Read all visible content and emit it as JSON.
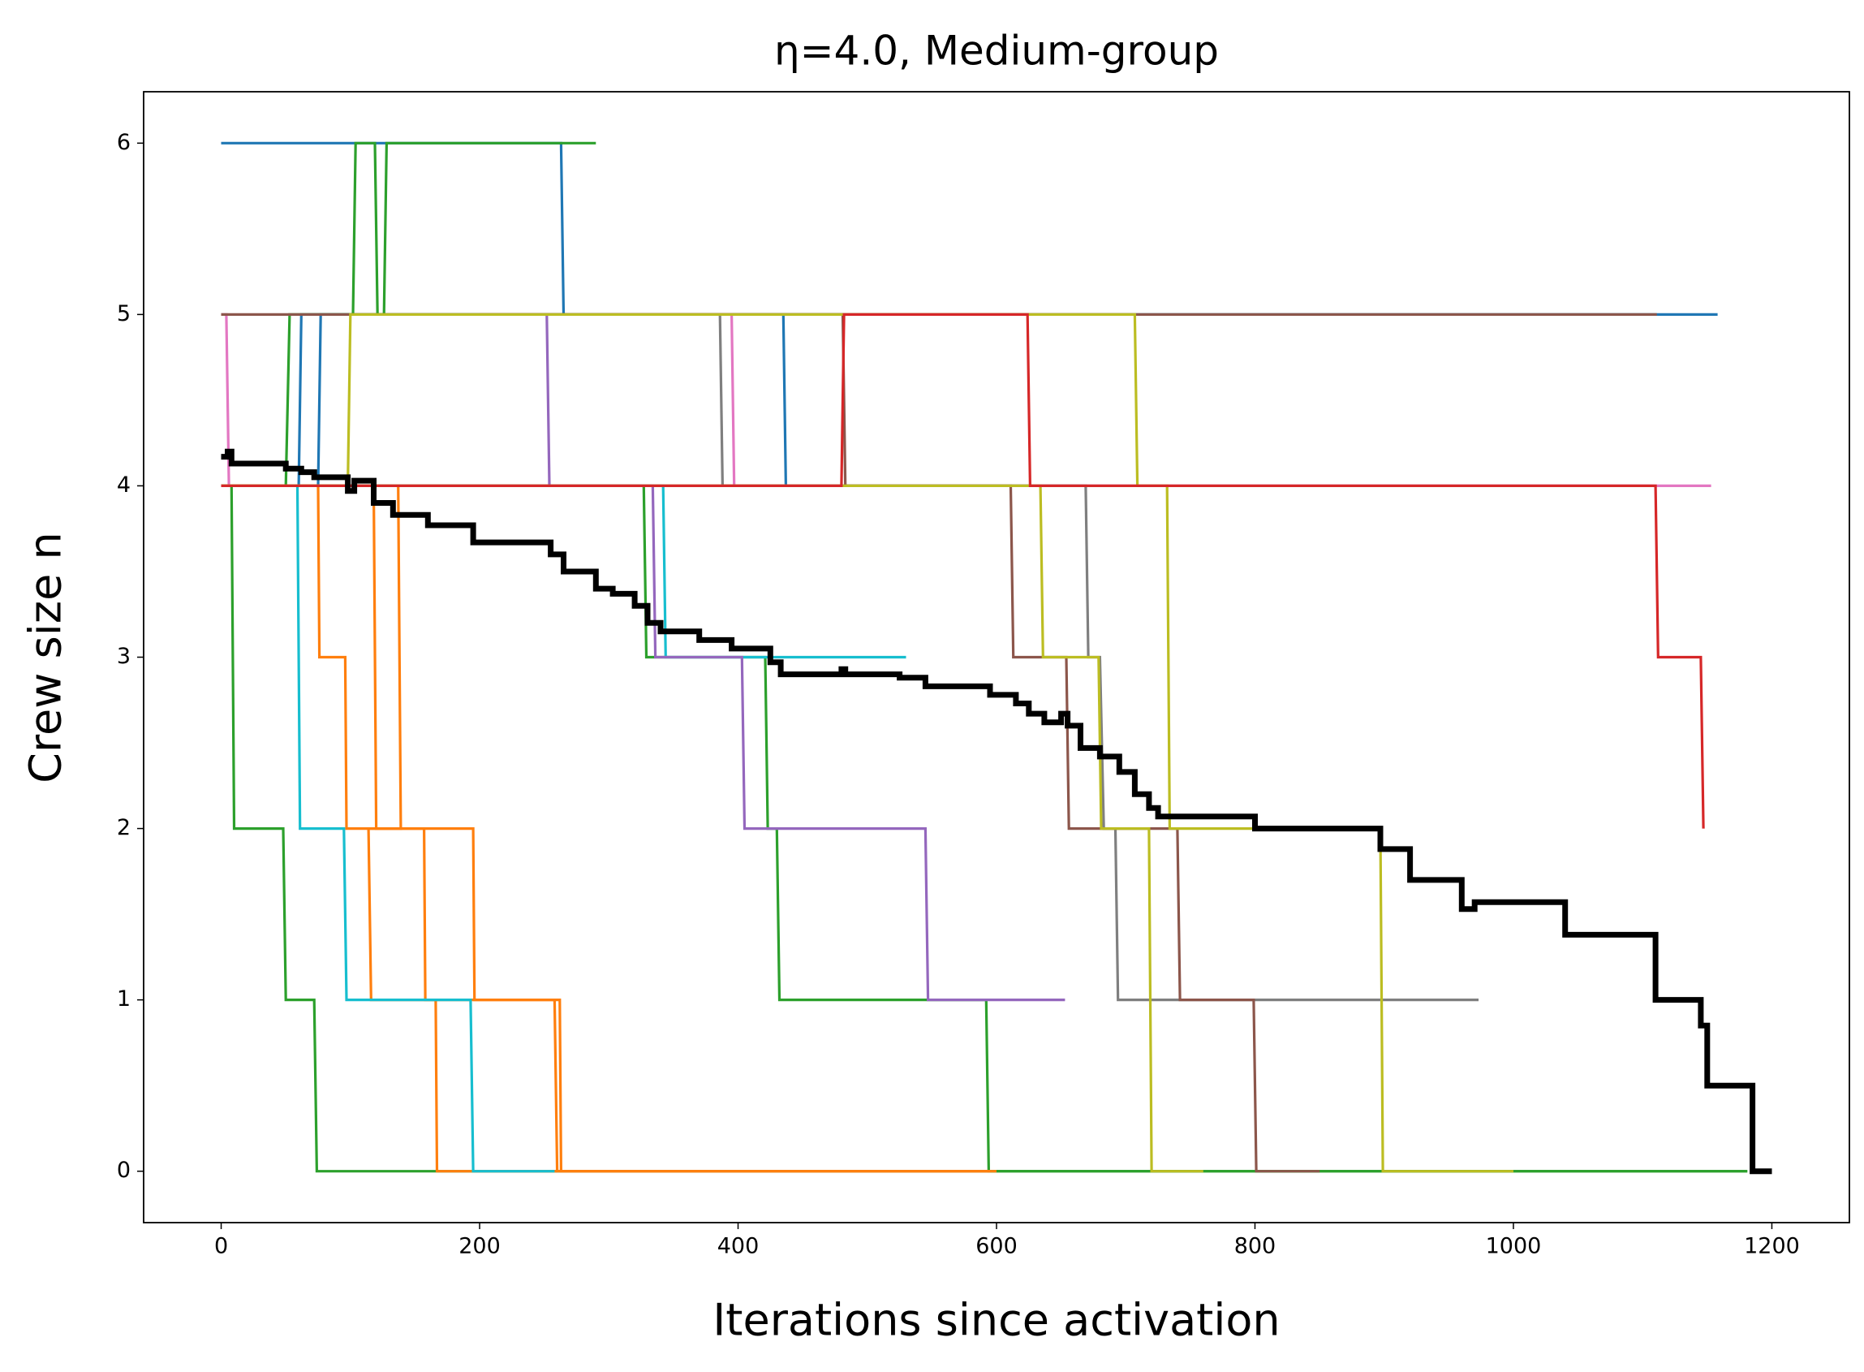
{
  "chart_data": {
    "type": "line",
    "title": "η=4.0, Medium-group",
    "x_label": "Iterations since activation",
    "y_label": "Crew size n",
    "xlim": [
      -60,
      1260
    ],
    "ylim": [
      -0.3,
      6.3
    ],
    "xticks": [
      0,
      200,
      400,
      600,
      800,
      1000,
      1200
    ],
    "yticks": [
      0,
      1,
      2,
      3,
      4,
      5,
      6
    ],
    "series": [
      {
        "color": "#1f77b4",
        "x": [
          0,
          263,
          265,
          1158
        ],
        "values": [
          6,
          6,
          5,
          5
        ]
      },
      {
        "color": "#1f77b4",
        "x": [
          0,
          60,
          62,
          435,
          437,
          625
        ],
        "values": [
          4,
          4,
          5,
          5,
          4,
          4
        ]
      },
      {
        "color": "#1f77b4",
        "x": [
          0,
          75,
          77,
          480
        ],
        "values": [
          4,
          4,
          5,
          5
        ]
      },
      {
        "color": "#2ca02c",
        "x": [
          0,
          8,
          10,
          48,
          50,
          72,
          74,
          1181
        ],
        "values": [
          4,
          4,
          2,
          2,
          1,
          1,
          0,
          0
        ]
      },
      {
        "color": "#2ca02c",
        "x": [
          0,
          50,
          53,
          102,
          104,
          119,
          121,
          126,
          128,
          290
        ],
        "values": [
          4,
          4,
          5,
          5,
          6,
          6,
          5,
          5,
          6,
          6
        ]
      },
      {
        "color": "#2ca02c",
        "x": [
          0,
          327,
          329,
          421,
          423,
          430,
          432,
          592,
          594,
          1181
        ],
        "values": [
          4,
          4,
          3,
          3,
          2,
          2,
          1,
          1,
          0,
          0
        ]
      },
      {
        "color": "#ff7f0e",
        "x": [
          0,
          75,
          76,
          96,
          97,
          195,
          196,
          262,
          263,
          600
        ],
        "values": [
          4,
          4,
          3,
          3,
          2,
          2,
          1,
          1,
          0,
          0
        ]
      },
      {
        "color": "#ff7f0e",
        "x": [
          0,
          118,
          120,
          157,
          158,
          166,
          167,
          260
        ],
        "values": [
          4,
          4,
          2,
          2,
          1,
          1,
          0,
          0
        ]
      },
      {
        "color": "#ff7f0e",
        "x": [
          0,
          137,
          139,
          114,
          116,
          258,
          260,
          595
        ],
        "values": [
          4,
          4,
          2,
          2,
          1,
          1,
          0,
          0
        ]
      },
      {
        "color": "#17becf",
        "x": [
          0,
          59,
          61,
          95,
          97,
          193,
          195,
          258
        ],
        "values": [
          4,
          4,
          2,
          2,
          1,
          1,
          0,
          0
        ]
      },
      {
        "color": "#17becf",
        "x": [
          0,
          342,
          344,
          530
        ],
        "values": [
          4,
          4,
          3,
          3
        ]
      },
      {
        "color": "#e377c2",
        "x": [
          0,
          4,
          6,
          1153
        ],
        "values": [
          5,
          5,
          4,
          4
        ]
      },
      {
        "color": "#e377c2",
        "x": [
          300,
          395,
          397,
          480
        ],
        "values": [
          5,
          5,
          4,
          4
        ]
      },
      {
        "color": "#9467bd",
        "x": [
          200,
          252,
          254,
          334,
          336,
          403,
          405,
          545,
          547,
          653
        ],
        "values": [
          5,
          5,
          4,
          4,
          3,
          3,
          2,
          2,
          1,
          1
        ]
      },
      {
        "color": "#7f7f7f",
        "x": [
          300,
          386,
          388,
          669,
          671,
          680,
          683,
          692,
          694,
          973
        ],
        "values": [
          5,
          5,
          4,
          4,
          3,
          3,
          2,
          2,
          1,
          1
        ]
      },
      {
        "color": "#8c564b",
        "x": [
          0,
          1111
        ],
        "values": [
          5,
          5
        ]
      },
      {
        "color": "#8c564b",
        "x": [
          200,
          481,
          483,
          611,
          613,
          654,
          656,
          740,
          742,
          799,
          801,
          850
        ],
        "values": [
          5,
          5,
          4,
          4,
          3,
          3,
          2,
          2,
          1,
          1,
          0,
          0
        ]
      },
      {
        "color": "#bcbd22",
        "x": [
          0,
          98,
          100,
          707,
          709,
          732,
          734,
          897,
          899,
          1000
        ],
        "values": [
          4,
          4,
          5,
          5,
          4,
          4,
          2,
          2,
          0,
          0
        ]
      },
      {
        "color": "#bcbd22",
        "x": [
          0,
          634,
          636,
          679,
          681,
          718,
          720,
          760
        ],
        "values": [
          4,
          4,
          3,
          3,
          2,
          2,
          0,
          0
        ]
      },
      {
        "color": "#d62728",
        "x": [
          0,
          480,
          482,
          624,
          626,
          1110,
          1112,
          1145,
          1147
        ],
        "values": [
          4,
          4,
          5,
          5,
          4,
          4,
          3,
          3,
          2
        ]
      },
      {
        "color": "#000000",
        "x": [
          0,
          5,
          5,
          8,
          8,
          50,
          50,
          62,
          62,
          72,
          72,
          98,
          98,
          103,
          103,
          118,
          118,
          133,
          133,
          160,
          160,
          195,
          195,
          255,
          255,
          265,
          265,
          290,
          290,
          303,
          303,
          320,
          320,
          330,
          330,
          340,
          340,
          370,
          370,
          395,
          395,
          425,
          425,
          433,
          433,
          480,
          480,
          483,
          483,
          525,
          525,
          545,
          545,
          595,
          595,
          615,
          615,
          625,
          625,
          637,
          637,
          650,
          650,
          655,
          655,
          665,
          665,
          680,
          680,
          695,
          695,
          707,
          707,
          718,
          718,
          725,
          725,
          800,
          800,
          897,
          897,
          920,
          920,
          960,
          960,
          970,
          970,
          1040,
          1040,
          1110,
          1110,
          1145,
          1145,
          1150,
          1150,
          1185,
          1185,
          1200
        ],
        "values": [
          4.17,
          4.17,
          4.2,
          4.2,
          4.13,
          4.13,
          4.1,
          4.1,
          4.08,
          4.08,
          4.05,
          4.05,
          3.97,
          3.97,
          4.03,
          4.03,
          3.9,
          3.9,
          3.83,
          3.83,
          3.77,
          3.77,
          3.67,
          3.67,
          3.6,
          3.6,
          3.5,
          3.5,
          3.4,
          3.4,
          3.37,
          3.37,
          3.3,
          3.3,
          3.2,
          3.2,
          3.15,
          3.15,
          3.1,
          3.1,
          3.05,
          3.05,
          2.97,
          2.97,
          2.9,
          2.9,
          2.93,
          2.93,
          2.9,
          2.9,
          2.88,
          2.88,
          2.83,
          2.83,
          2.78,
          2.78,
          2.73,
          2.73,
          2.67,
          2.67,
          2.62,
          2.62,
          2.67,
          2.67,
          2.6,
          2.6,
          2.47,
          2.47,
          2.42,
          2.42,
          2.33,
          2.33,
          2.2,
          2.2,
          2.12,
          2.12,
          2.07,
          2.07,
          2.0,
          2.0,
          1.88,
          1.88,
          1.7,
          1.7,
          1.53,
          1.53,
          1.57,
          1.57,
          1.38,
          1.38,
          1.0,
          1.0,
          0.85,
          0.85,
          0.5,
          0.5,
          0,
          0
        ]
      }
    ]
  }
}
